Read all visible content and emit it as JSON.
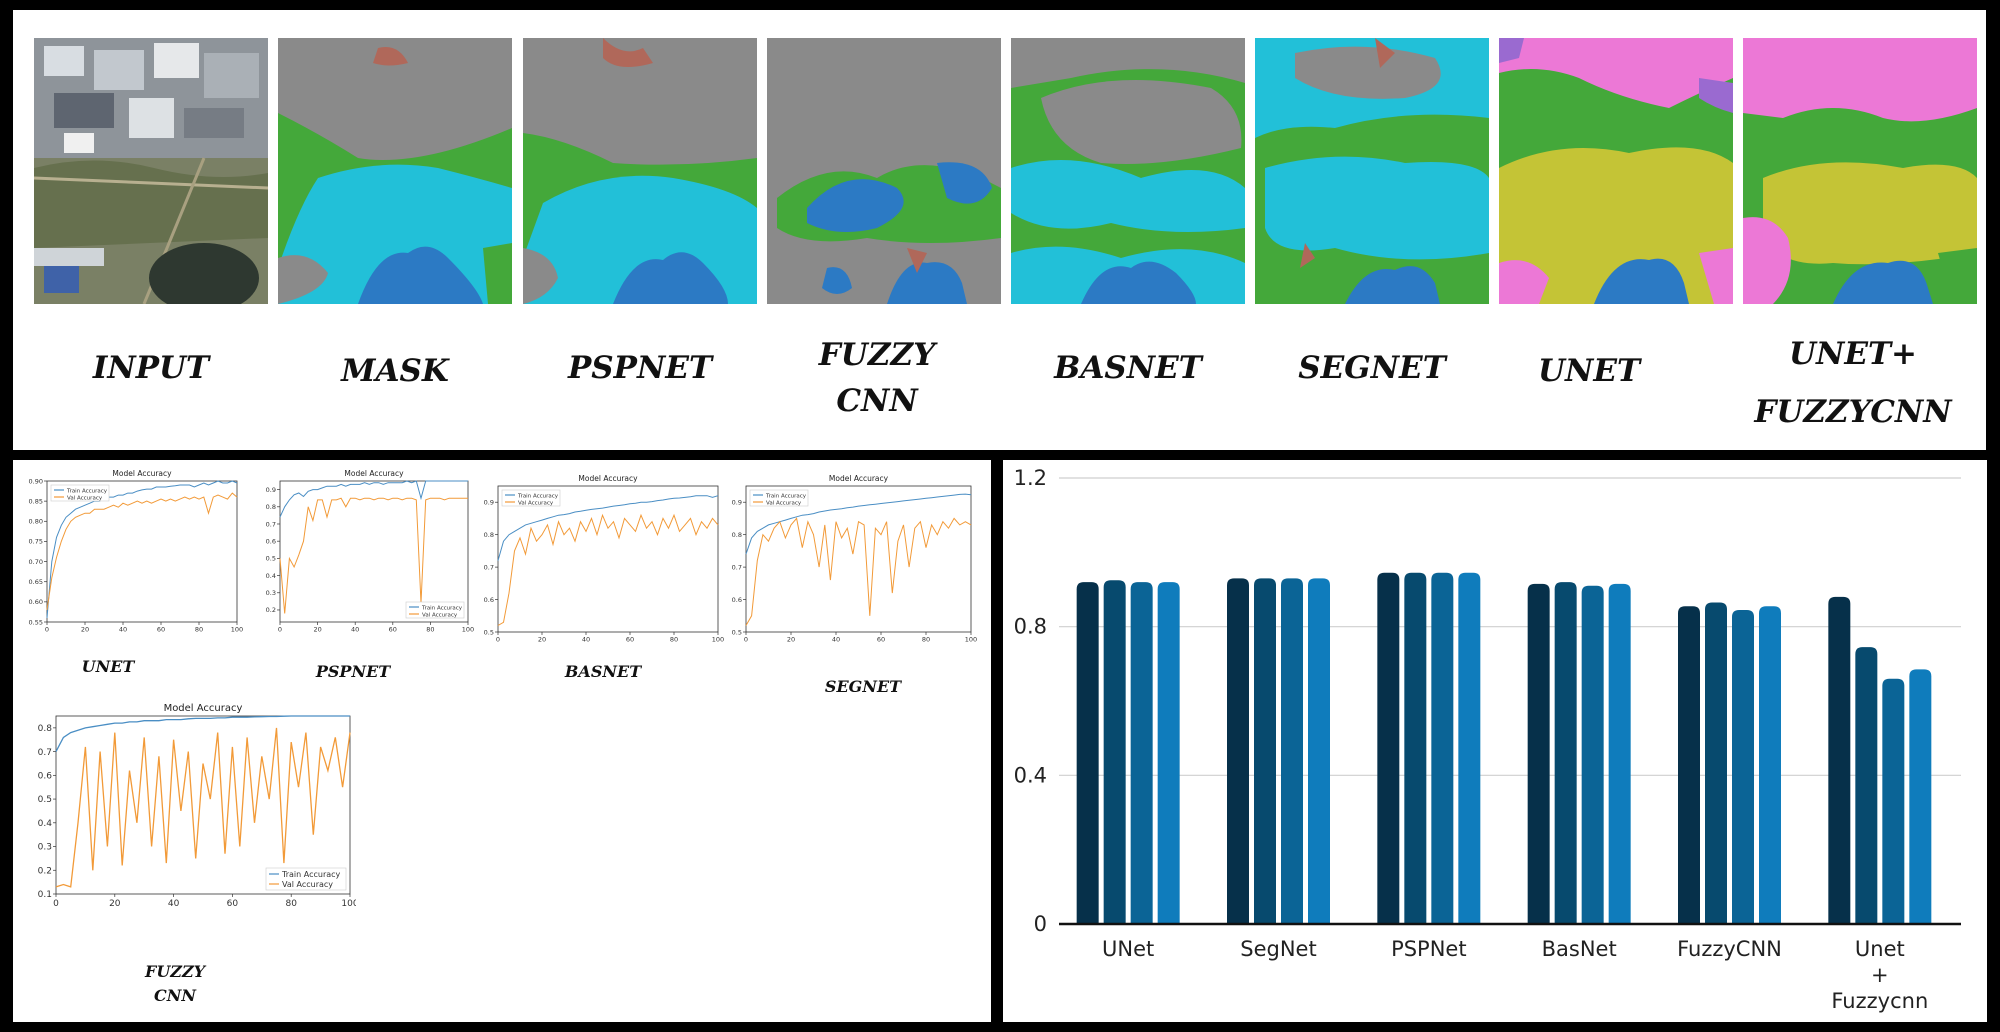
{
  "segmentation_labels": [
    "INPUT",
    "MASK",
    "PSPNET",
    "FUZZY CNN",
    "BASNET",
    "SEGNET",
    "UNET",
    "UNET+ FUZZYCNN"
  ],
  "seg_colors": {
    "gray": "#8a8a8a",
    "green": "#44a83a",
    "cyan": "#22c0d8",
    "blue": "#2c7ac4",
    "brown": "#b0685a",
    "pink": "#ec78d6",
    "olive": "#c4c436",
    "purple": "#9a6ad0"
  },
  "chart_data": [
    {
      "type": "line",
      "model": "UNET",
      "title": "Model Accuracy",
      "caption": "UNET",
      "x_ticks": [
        "0",
        "20",
        "40",
        "60",
        "80",
        "100"
      ],
      "y_ticks": [
        "0.55",
        "0.60",
        "0.65",
        "0.70",
        "0.75",
        "0.80",
        "0.85",
        "0.90"
      ],
      "xlim": [
        0,
        100
      ],
      "ylim": [
        0.55,
        0.9
      ],
      "legend": [
        "Train Accuracy",
        "Val Accuracy"
      ],
      "legend_position": "top-left",
      "series": [
        {
          "name": "Train Accuracy",
          "color": "#4a8ec4",
          "values": [
            0.56,
            0.7,
            0.76,
            0.79,
            0.81,
            0.82,
            0.83,
            0.835,
            0.84,
            0.845,
            0.85,
            0.85,
            0.855,
            0.86,
            0.86,
            0.865,
            0.865,
            0.87,
            0.87,
            0.875,
            0.878,
            0.88,
            0.88,
            0.885,
            0.885,
            0.885,
            0.887,
            0.888,
            0.89,
            0.89,
            0.89,
            0.885,
            0.89,
            0.895,
            0.89,
            0.895,
            0.9,
            0.895,
            0.895,
            0.9,
            0.895
          ]
        },
        {
          "name": "Val Accuracy",
          "color": "#f29a38",
          "values": [
            0.58,
            0.66,
            0.71,
            0.75,
            0.78,
            0.8,
            0.81,
            0.815,
            0.82,
            0.82,
            0.83,
            0.83,
            0.83,
            0.835,
            0.84,
            0.835,
            0.845,
            0.84,
            0.845,
            0.85,
            0.845,
            0.85,
            0.845,
            0.85,
            0.855,
            0.85,
            0.855,
            0.85,
            0.855,
            0.86,
            0.855,
            0.86,
            0.855,
            0.86,
            0.82,
            0.86,
            0.865,
            0.86,
            0.855,
            0.87,
            0.86
          ]
        }
      ]
    },
    {
      "type": "line",
      "model": "PSPNET",
      "title": "Model Accuracy",
      "caption": "PSPNET",
      "x_ticks": [
        "0",
        "20",
        "40",
        "60",
        "80",
        "100"
      ],
      "y_ticks": [
        "0.2",
        "0.3",
        "0.4",
        "0.5",
        "0.6",
        "0.7",
        "0.8",
        "0.9"
      ],
      "xlim": [
        0,
        100
      ],
      "ylim": [
        0.13,
        0.95
      ],
      "legend": [
        "Train Accuracy",
        "Val Accuracy"
      ],
      "legend_position": "bottom-right",
      "series": [
        {
          "name": "Train Accuracy",
          "color": "#4a8ec4",
          "values": [
            0.74,
            0.8,
            0.84,
            0.87,
            0.88,
            0.86,
            0.89,
            0.9,
            0.9,
            0.91,
            0.92,
            0.92,
            0.92,
            0.93,
            0.92,
            0.93,
            0.93,
            0.93,
            0.94,
            0.93,
            0.94,
            0.94,
            0.93,
            0.94,
            0.94,
            0.94,
            0.94,
            0.95,
            0.94,
            0.95,
            0.85,
            0.95,
            0.95,
            0.95,
            0.95,
            0.95,
            0.95,
            0.95,
            0.95,
            0.95,
            0.95
          ]
        },
        {
          "name": "Val Accuracy",
          "color": "#f29a38",
          "values": [
            0.5,
            0.18,
            0.5,
            0.45,
            0.52,
            0.6,
            0.8,
            0.72,
            0.84,
            0.84,
            0.74,
            0.84,
            0.84,
            0.85,
            0.8,
            0.85,
            0.85,
            0.84,
            0.85,
            0.85,
            0.84,
            0.85,
            0.85,
            0.84,
            0.85,
            0.85,
            0.84,
            0.85,
            0.85,
            0.84,
            0.24,
            0.84,
            0.85,
            0.85,
            0.85,
            0.84,
            0.85,
            0.85,
            0.85,
            0.85,
            0.85
          ]
        }
      ]
    },
    {
      "type": "line",
      "model": "BASNET",
      "title": "Model Accuracy",
      "caption": "BASNET",
      "x_ticks": [
        "0",
        "20",
        "40",
        "60",
        "80",
        "100"
      ],
      "y_ticks": [
        "0.5",
        "0.6",
        "0.7",
        "0.8",
        "0.9"
      ],
      "xlim": [
        0,
        100
      ],
      "ylim": [
        0.5,
        0.95
      ],
      "legend": [
        "Train Accuracy",
        "Val Accuracy"
      ],
      "legend_position": "top-left",
      "series": [
        {
          "name": "Train Accuracy",
          "color": "#4a8ec4",
          "values": [
            0.72,
            0.78,
            0.8,
            0.81,
            0.82,
            0.83,
            0.835,
            0.84,
            0.845,
            0.85,
            0.855,
            0.86,
            0.862,
            0.865,
            0.87,
            0.872,
            0.875,
            0.878,
            0.88,
            0.882,
            0.885,
            0.888,
            0.89,
            0.892,
            0.895,
            0.897,
            0.9,
            0.9,
            0.902,
            0.905,
            0.907,
            0.91,
            0.912,
            0.913,
            0.915,
            0.917,
            0.92,
            0.92,
            0.92,
            0.915,
            0.92
          ]
        },
        {
          "name": "Val Accuracy",
          "color": "#f29a38",
          "values": [
            0.52,
            0.53,
            0.62,
            0.75,
            0.79,
            0.74,
            0.82,
            0.78,
            0.8,
            0.83,
            0.77,
            0.84,
            0.8,
            0.82,
            0.78,
            0.84,
            0.81,
            0.85,
            0.8,
            0.86,
            0.82,
            0.84,
            0.79,
            0.85,
            0.83,
            0.81,
            0.86,
            0.82,
            0.84,
            0.8,
            0.85,
            0.82,
            0.86,
            0.81,
            0.83,
            0.85,
            0.8,
            0.84,
            0.82,
            0.85,
            0.83
          ]
        }
      ]
    },
    {
      "type": "line",
      "model": "SEGNET",
      "title": "Model Accuracy",
      "caption": "SEGNET",
      "x_ticks": [
        "0",
        "20",
        "40",
        "60",
        "80",
        "100"
      ],
      "y_ticks": [
        "0.5",
        "0.6",
        "0.7",
        "0.8",
        "0.9"
      ],
      "xlim": [
        0,
        100
      ],
      "ylim": [
        0.5,
        0.95
      ],
      "legend": [
        "Train Accuracy",
        "Val Accuracy"
      ],
      "legend_position": "top-left",
      "series": [
        {
          "name": "Train Accuracy",
          "color": "#4a8ec4",
          "values": [
            0.74,
            0.79,
            0.81,
            0.82,
            0.83,
            0.835,
            0.84,
            0.845,
            0.85,
            0.855,
            0.86,
            0.862,
            0.865,
            0.87,
            0.873,
            0.876,
            0.878,
            0.88,
            0.883,
            0.885,
            0.888,
            0.89,
            0.892,
            0.894,
            0.896,
            0.898,
            0.9,
            0.902,
            0.904,
            0.906,
            0.908,
            0.91,
            0.912,
            0.914,
            0.916,
            0.918,
            0.92,
            0.922,
            0.924,
            0.925,
            0.923
          ]
        },
        {
          "name": "Val Accuracy",
          "color": "#f29a38",
          "values": [
            0.52,
            0.55,
            0.72,
            0.8,
            0.78,
            0.82,
            0.84,
            0.79,
            0.83,
            0.85,
            0.76,
            0.84,
            0.8,
            0.7,
            0.83,
            0.66,
            0.84,
            0.79,
            0.82,
            0.74,
            0.84,
            0.83,
            0.55,
            0.82,
            0.8,
            0.84,
            0.62,
            0.78,
            0.83,
            0.7,
            0.82,
            0.84,
            0.76,
            0.83,
            0.8,
            0.84,
            0.82,
            0.85,
            0.83,
            0.84,
            0.83
          ]
        }
      ]
    },
    {
      "type": "line",
      "model": "FUZZY CNN",
      "title": "Model Accuracy",
      "caption": "FUZZY CNN",
      "x_ticks": [
        "0",
        "20",
        "40",
        "60",
        "80",
        "100"
      ],
      "y_ticks": [
        "0.1",
        "0.2",
        "0.3",
        "0.4",
        "0.5",
        "0.6",
        "0.7",
        "0.8"
      ],
      "xlim": [
        0,
        100
      ],
      "ylim": [
        0.1,
        0.85
      ],
      "legend": [
        "Train Accuracy",
        "Val Accuracy"
      ],
      "legend_position": "bottom-right",
      "series": [
        {
          "name": "Train Accuracy",
          "color": "#4a8ec4",
          "values": [
            0.7,
            0.76,
            0.78,
            0.79,
            0.8,
            0.805,
            0.81,
            0.815,
            0.82,
            0.82,
            0.825,
            0.825,
            0.83,
            0.83,
            0.83,
            0.835,
            0.835,
            0.835,
            0.838,
            0.84,
            0.84,
            0.84,
            0.842,
            0.842,
            0.845,
            0.845,
            0.845,
            0.846,
            0.847,
            0.848,
            0.848,
            0.849,
            0.85,
            0.85,
            0.85,
            0.85,
            0.85,
            0.85,
            0.85,
            0.85,
            0.85
          ]
        },
        {
          "name": "Val Accuracy",
          "color": "#f29a38",
          "values": [
            0.13,
            0.14,
            0.13,
            0.4,
            0.72,
            0.2,
            0.7,
            0.3,
            0.78,
            0.22,
            0.62,
            0.4,
            0.76,
            0.3,
            0.68,
            0.23,
            0.75,
            0.45,
            0.7,
            0.25,
            0.65,
            0.5,
            0.78,
            0.27,
            0.72,
            0.3,
            0.76,
            0.4,
            0.68,
            0.5,
            0.8,
            0.23,
            0.74,
            0.55,
            0.78,
            0.35,
            0.72,
            0.62,
            0.76,
            0.55,
            0.78
          ]
        }
      ]
    },
    {
      "type": "bar",
      "categories": [
        "UNet",
        "SegNet",
        "PSPNet",
        "BasNet",
        "FuzzyCNN",
        "Unet\n+\nFuzzycnn"
      ],
      "category_lines": [
        [
          "UNet"
        ],
        [
          "SegNet"
        ],
        [
          "PSPNet"
        ],
        [
          "BasNet"
        ],
        [
          "FuzzyCNN"
        ],
        [
          "Unet",
          "+",
          "Fuzzycnn"
        ]
      ],
      "y_ticks": [
        "0",
        "0.4",
        "0.8",
        "1.2"
      ],
      "ylim": [
        0,
        1.2
      ],
      "grid": true,
      "bar_colors": [
        "#06304a",
        "#074a6e",
        "#0b6496",
        "#0f7cbc"
      ],
      "series": [
        {
          "values": [
            0.92,
            0.93,
            0.945,
            0.915,
            0.855,
            0.88
          ]
        },
        {
          "values": [
            0.925,
            0.93,
            0.945,
            0.92,
            0.865,
            0.745
          ]
        },
        {
          "values": [
            0.92,
            0.93,
            0.945,
            0.91,
            0.845,
            0.66
          ]
        },
        {
          "values": [
            0.92,
            0.93,
            0.945,
            0.915,
            0.855,
            0.685
          ]
        }
      ]
    }
  ]
}
